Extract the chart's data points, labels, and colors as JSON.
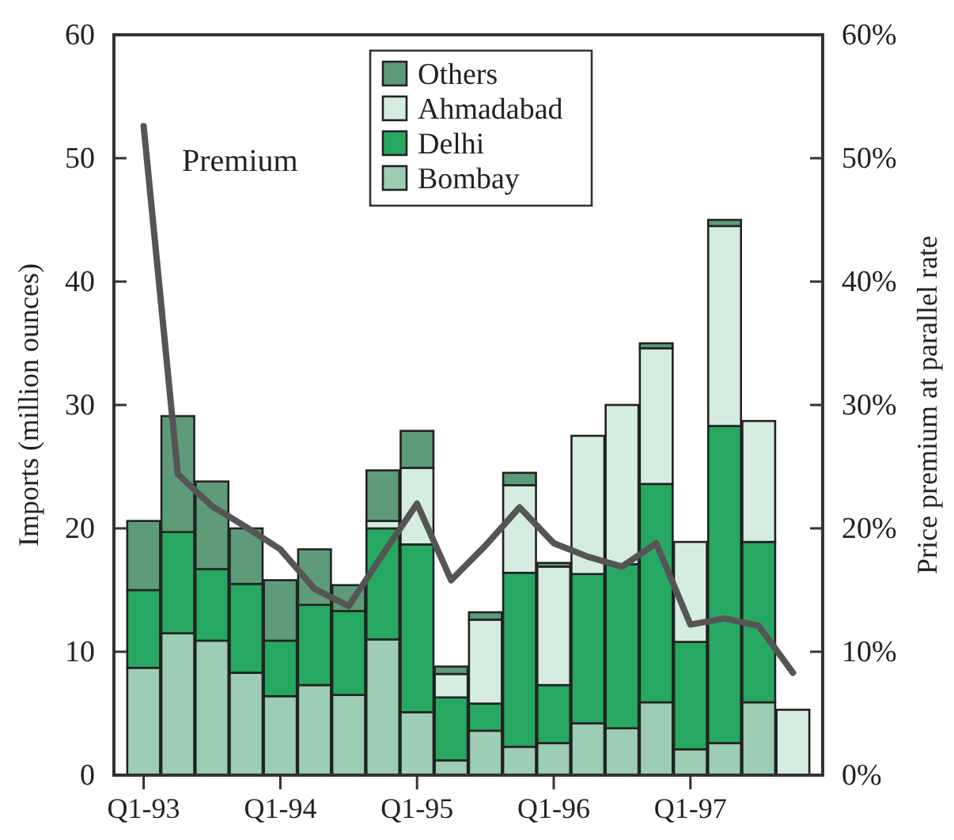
{
  "chart_data": {
    "type": "bar",
    "stacked": true,
    "ylabel": "Imports (million ounces)",
    "y2label": "Price premium at parallel rate",
    "categories": [
      "Q1-93",
      null,
      null,
      null,
      "Q1-94",
      null,
      null,
      null,
      "Q1-95",
      null,
      null,
      null,
      "Q1-96",
      null,
      null,
      null,
      "Q1-97",
      null,
      null,
      null
    ],
    "series": [
      {
        "name": "Bombay",
        "color": "#9dcdb3",
        "values": [
          8.7,
          11.5,
          10.9,
          8.3,
          6.4,
          7.3,
          6.5,
          11.0,
          5.1,
          1.2,
          3.6,
          2.3,
          2.6,
          4.2,
          3.8,
          5.9,
          2.1,
          2.6,
          5.9,
          null
        ]
      },
      {
        "name": "Delhi",
        "color": "#27a862",
        "values": [
          6.3,
          8.2,
          5.8,
          7.2,
          4.5,
          6.5,
          6.8,
          9.0,
          13.6,
          5.1,
          2.2,
          14.1,
          4.7,
          12.1,
          13.3,
          17.7,
          8.7,
          25.7,
          13.0,
          0
        ]
      },
      {
        "name": "Ahmadabad",
        "color": "#d4ede0",
        "values": [
          0,
          0,
          0,
          0,
          0,
          0,
          0,
          0.6,
          6.2,
          1.9,
          6.8,
          7.1,
          9.6,
          11.2,
          12.9,
          11.0,
          8.1,
          16.2,
          9.8,
          5.3
        ]
      },
      {
        "name": "Others",
        "color": "#5e9b78",
        "values": [
          5.6,
          9.4,
          7.1,
          4.5,
          4.9,
          4.5,
          2.1,
          4.1,
          3.0,
          0.6,
          0.6,
          1.0,
          0.3,
          0,
          0,
          0.4,
          0,
          0.5,
          0,
          0
        ]
      },
      {
        "type": "line",
        "axis": "y2",
        "color": "#555555",
        "values": [
          52.6,
          24.4,
          21.8,
          20.1,
          18.3,
          15.1,
          13.7,
          17.9,
          22.0,
          15.8,
          18.6,
          21.7,
          18.8,
          17.7,
          16.9,
          18.8,
          12.2,
          12.7,
          12.1,
          8.3
        ]
      }
    ],
    "ylim": [
      0,
      60
    ],
    "yticks": [
      0,
      10,
      20,
      30,
      40,
      50,
      60
    ],
    "y2lim": [
      0,
      60
    ],
    "y2ticks": [
      {
        "value": 0,
        "label": "0%"
      },
      {
        "value": 10,
        "label": "10%"
      },
      {
        "value": 20,
        "label": "20%"
      },
      {
        "value": 30,
        "label": "30%"
      },
      {
        "value": 40,
        "label": "40%"
      },
      {
        "value": 50,
        "label": "50%"
      },
      {
        "value": 60,
        "label": "60%"
      }
    ],
    "annotations": [
      "Premium"
    ],
    "legend": "top"
  }
}
